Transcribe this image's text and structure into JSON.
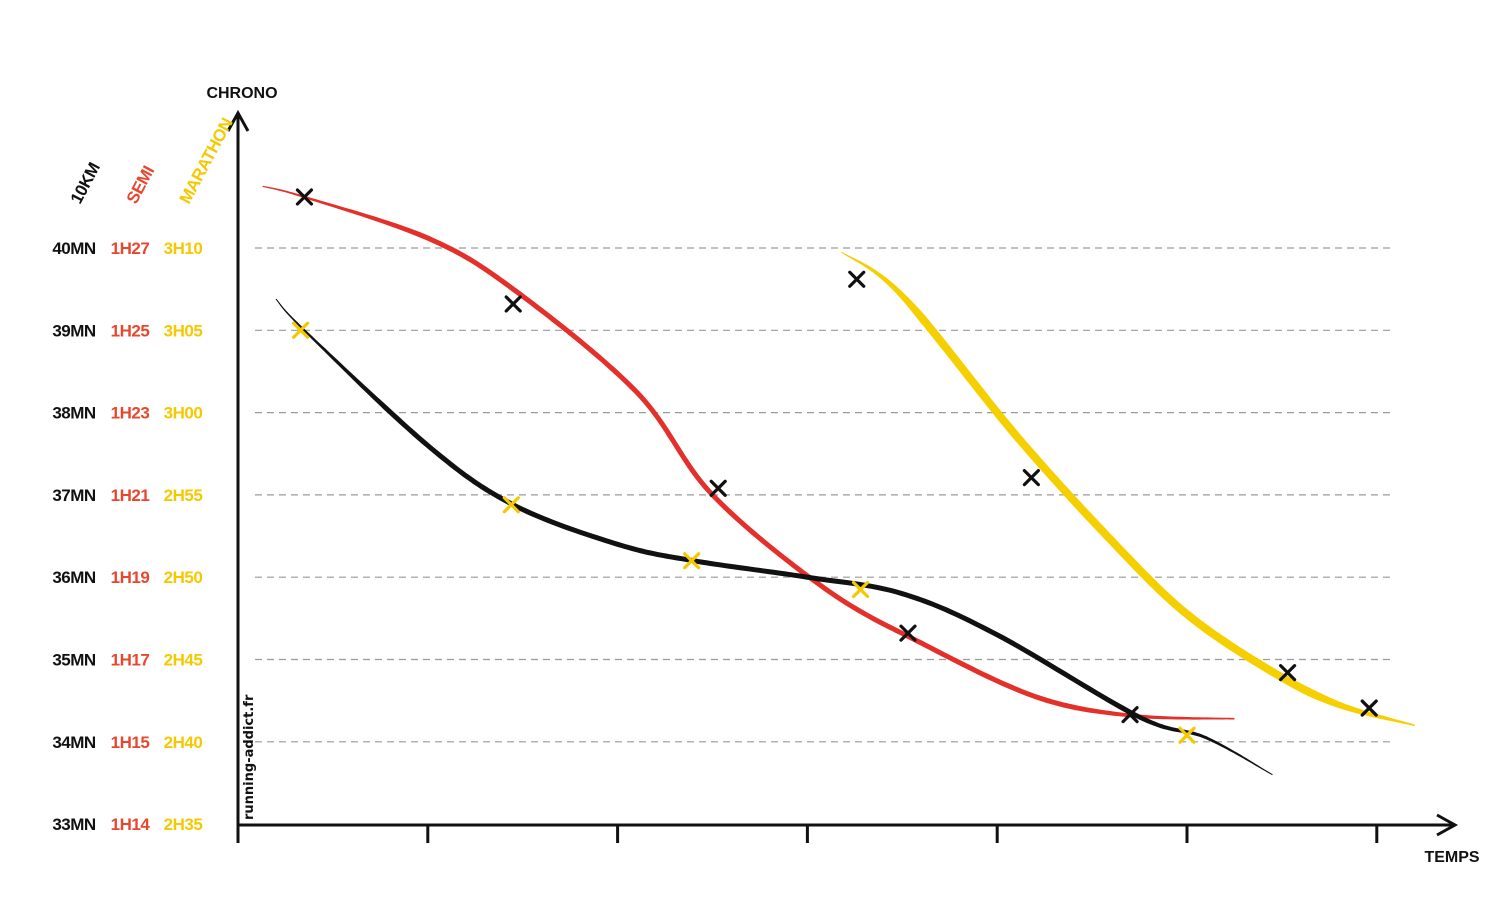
{
  "chart_data": {
    "type": "line",
    "y_axis_title": "CHRONO",
    "x_axis_title": "TEMPS",
    "watermark": "running-addict.fr",
    "grid": "dashed horizontal",
    "y_columns": [
      {
        "header": "10KM",
        "color": "#111111",
        "labels": [
          "40MN",
          "39MN",
          "38MN",
          "37MN",
          "36MN",
          "35MN",
          "34MN",
          "33MN"
        ]
      },
      {
        "header": "SEMI",
        "color": "#e8472f",
        "labels": [
          "1H27",
          "1H25",
          "1H23",
          "1H21",
          "1H19",
          "1H17",
          "1H15",
          "1H14"
        ]
      },
      {
        "header": "MARATHON",
        "color": "#f5c800",
        "labels": [
          "3H10",
          "3H05",
          "3H00",
          "2H55",
          "2H50",
          "2H45",
          "2H40",
          "2H35"
        ]
      }
    ],
    "y_levels": [
      40,
      39,
      38,
      37,
      36,
      35,
      34,
      33
    ],
    "ylim": [
      33,
      41.1
    ],
    "xlim": [
      0,
      6.2
    ],
    "x_ticks": [
      0,
      1,
      2,
      3,
      4,
      5,
      6
    ],
    "series": [
      {
        "color": "#e3302a",
        "width_start": 1.2,
        "width_end": 1.5,
        "width_mid": 5,
        "curve": [
          [
            0.13,
            40.75
          ],
          [
            0.35,
            40.62
          ],
          [
            1.0,
            40.12
          ],
          [
            1.45,
            39.5
          ],
          [
            2.1,
            38.25
          ],
          [
            2.5,
            37.0
          ],
          [
            3.1,
            35.85
          ],
          [
            3.6,
            35.2
          ],
          [
            4.2,
            34.55
          ],
          [
            4.7,
            34.32
          ],
          [
            5.25,
            34.28
          ]
        ],
        "markers": {
          "color": "#111111",
          "points": [
            [
              0.35,
              40.62
            ],
            [
              1.45,
              39.32
            ],
            [
              2.53,
              37.08
            ],
            [
              3.53,
              35.32
            ],
            [
              4.7,
              34.33
            ]
          ]
        }
      },
      {
        "color": "#111111",
        "width_start": 1,
        "width_end": 1,
        "width_mid": 5,
        "curve": [
          [
            0.2,
            39.38
          ],
          [
            0.35,
            39.0
          ],
          [
            1.0,
            37.6
          ],
          [
            1.45,
            36.88
          ],
          [
            2.0,
            36.4
          ],
          [
            2.4,
            36.2
          ],
          [
            3.0,
            36.0
          ],
          [
            3.5,
            35.8
          ],
          [
            4.0,
            35.3
          ],
          [
            4.75,
            34.3
          ],
          [
            5.1,
            34.05
          ],
          [
            5.45,
            33.6
          ]
        ],
        "markers": {
          "color": "#f5c800",
          "points": [
            [
              0.33,
              39.0
            ],
            [
              1.44,
              36.88
            ],
            [
              2.39,
              36.2
            ],
            [
              3.28,
              35.85
            ],
            [
              5.0,
              34.08
            ]
          ]
        }
      },
      {
        "color": "#f5cf00",
        "width_start": 1,
        "width_end": 1.5,
        "width_mid": 8,
        "curve": [
          [
            3.18,
            39.95
          ],
          [
            3.5,
            39.42
          ],
          [
            4.1,
            37.72
          ],
          [
            4.6,
            36.45
          ],
          [
            5.0,
            35.55
          ],
          [
            5.45,
            34.85
          ],
          [
            5.8,
            34.45
          ],
          [
            6.2,
            34.2
          ]
        ],
        "markers": {
          "color": "#111111",
          "points": [
            [
              3.26,
              39.62
            ],
            [
              4.18,
              37.21
            ],
            [
              5.53,
              34.84
            ],
            [
              5.96,
              34.41
            ]
          ]
        }
      }
    ]
  }
}
